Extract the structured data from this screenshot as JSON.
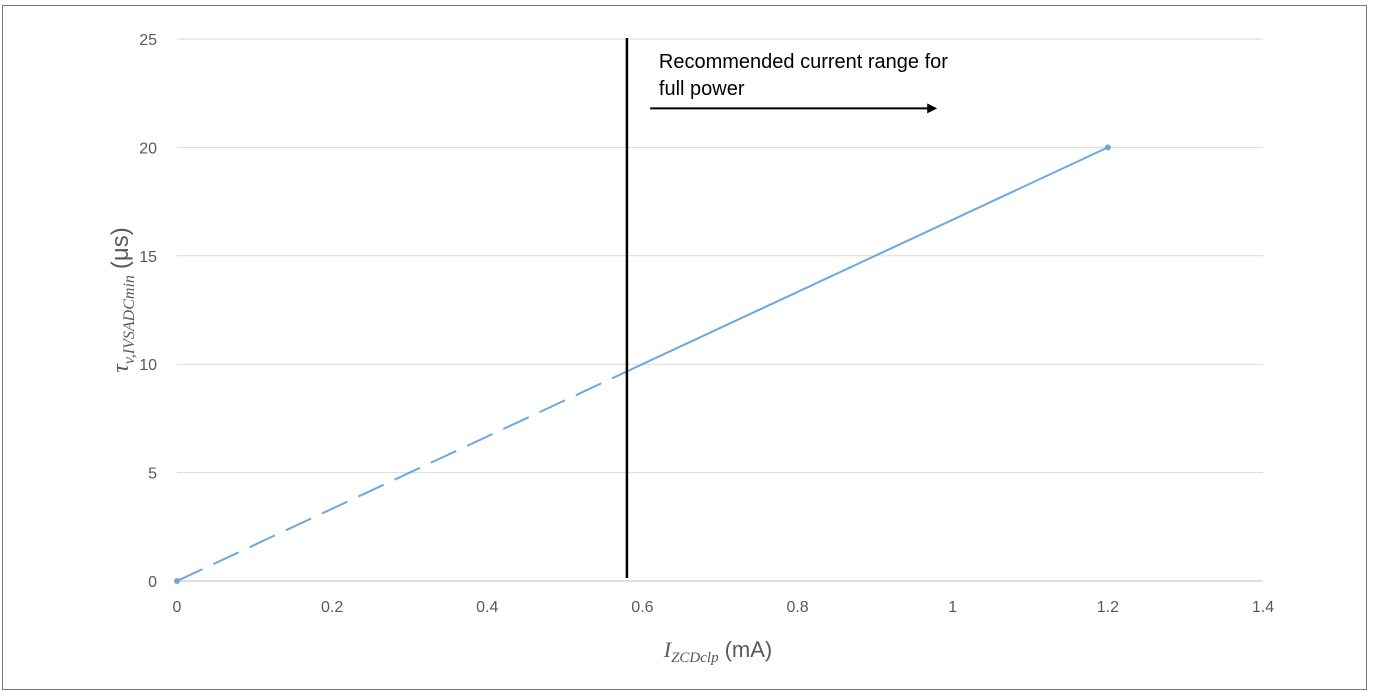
{
  "chart_data": {
    "type": "line",
    "xlabel": {
      "symbol": "I",
      "subscript": "ZCDclp",
      "unit": "(mA)"
    },
    "ylabel": {
      "symbol": "τ",
      "subscript": "v,IVSADCmin",
      "unit": "(μs)"
    },
    "xlim": [
      0,
      1.4
    ],
    "ylim": [
      0,
      25
    ],
    "xticks": [
      0,
      0.2,
      0.4,
      0.6,
      0.8,
      1,
      1.2,
      1.4
    ],
    "xtick_labels": [
      "0",
      "0.2",
      "0.4",
      "0.6",
      "0.8",
      "1",
      "1.2",
      "1.4"
    ],
    "yticks": [
      0,
      5,
      10,
      15,
      20,
      25
    ],
    "ytick_labels": [
      "0",
      "5",
      "10",
      "15",
      "20",
      "25"
    ],
    "grid": "horizontal",
    "series": [
      {
        "points": [
          {
            "x": 0,
            "y": 0
          },
          {
            "x": 1.2,
            "y": 20
          }
        ],
        "color": "#6FA8DC",
        "dashed_below_x": 0.58,
        "markers": true
      }
    ],
    "vertical_line": {
      "x": 0.58,
      "color": "#000000"
    },
    "annotation": {
      "lines": [
        "Recommended current range for",
        "full power"
      ],
      "arrow": {
        "x_start": 0.61,
        "x_end": 0.98,
        "y": 21.8
      }
    }
  }
}
